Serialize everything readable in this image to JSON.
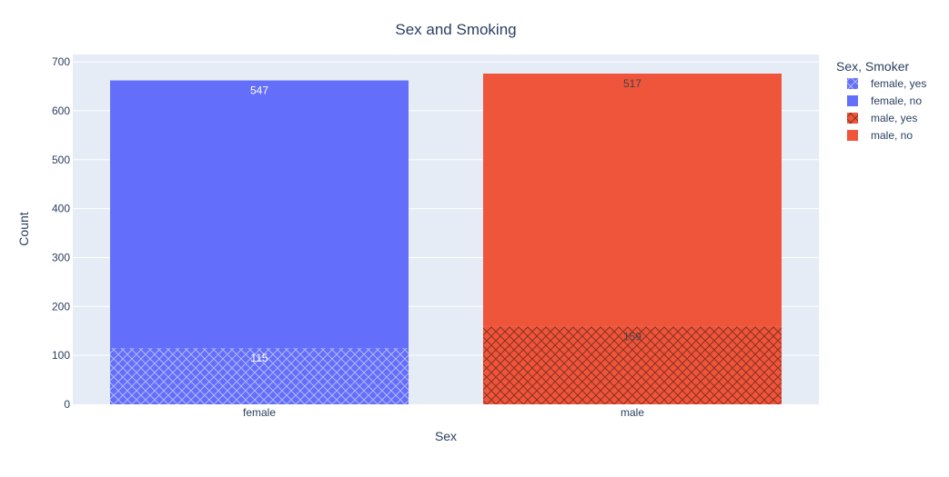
{
  "chart_data": {
    "type": "bar",
    "barmode": "stack",
    "title": "Sex and Smoking",
    "xlabel": "Sex",
    "ylabel": "Count",
    "categories": [
      "female",
      "male"
    ],
    "ylim": [
      0,
      700
    ],
    "yticks": [
      0,
      100,
      200,
      300,
      400,
      500,
      600,
      700
    ],
    "grid": true,
    "legend_title": "Sex, Smoker",
    "legend_position": "right",
    "series": [
      {
        "name": "female, yes",
        "category": "female",
        "value": 115,
        "color": "#636efa",
        "pattern": "crosshatch",
        "label_color": "#ffffff"
      },
      {
        "name": "female, no",
        "category": "female",
        "value": 547,
        "color": "#636efa",
        "pattern": "none",
        "label_color": "#ffffff"
      },
      {
        "name": "male, yes",
        "category": "male",
        "value": 159,
        "color": "#ef553b",
        "pattern": "crosshatch",
        "label_color": "#444444"
      },
      {
        "name": "male, no",
        "category": "male",
        "value": 517,
        "color": "#ef553b",
        "pattern": "none",
        "label_color": "#444444"
      }
    ],
    "colors": {
      "plot_bg": "#e5ecf6",
      "grid": "#ffffff",
      "text": "#2a3f5f"
    }
  }
}
